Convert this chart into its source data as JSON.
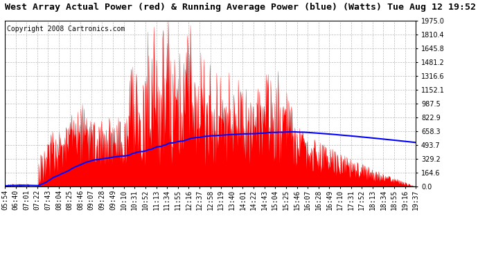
{
  "title": "West Array Actual Power (red) & Running Average Power (blue) (Watts) Tue Aug 12 19:52",
  "copyright": "Copyright 2008 Cartronics.com",
  "y_ticks": [
    0.0,
    164.6,
    329.2,
    493.7,
    658.3,
    822.9,
    987.5,
    1152.1,
    1316.6,
    1481.2,
    1645.8,
    1810.4,
    1975.0
  ],
  "x_labels": [
    "05:54",
    "06:40",
    "07:01",
    "07:22",
    "07:43",
    "08:04",
    "08:25",
    "08:46",
    "09:07",
    "09:28",
    "09:49",
    "10:10",
    "10:31",
    "10:52",
    "11:13",
    "11:34",
    "11:55",
    "12:16",
    "12:37",
    "12:58",
    "13:19",
    "13:40",
    "14:01",
    "14:22",
    "14:43",
    "15:04",
    "15:25",
    "15:46",
    "16:07",
    "16:28",
    "16:49",
    "17:10",
    "17:31",
    "17:52",
    "18:13",
    "18:34",
    "18:55",
    "19:16",
    "19:37"
  ],
  "bg_color": "#ffffff",
  "red_color": "#ff0000",
  "blue_color": "#0000ff",
  "grid_color": "#aaaaaa",
  "ylim": [
    0.0,
    1975.0
  ],
  "title_fontsize": 9.5,
  "copyright_fontsize": 7,
  "tick_fontsize": 7
}
